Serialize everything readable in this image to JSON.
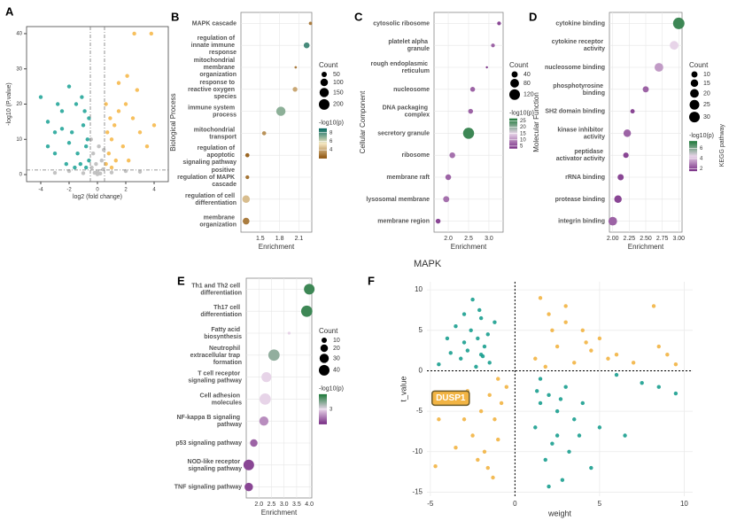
{
  "chart_data": [
    {
      "type": "scatter",
      "label": "A",
      "xlabel": "log2 (fold change)",
      "ylabel": "-log10 (P.value)",
      "xlim": [
        -5,
        5
      ],
      "ylim": [
        -2,
        42
      ],
      "xticks": [
        -4,
        -2,
        0,
        2,
        4
      ],
      "yticks": [
        0,
        10,
        20,
        30,
        40
      ],
      "vlines": [
        -0.5,
        0.5
      ],
      "hline": 1.3,
      "series": [
        {
          "color": "#bdbdbd",
          "x": [
            -0.4,
            -0.2,
            0,
            0.2,
            0.4,
            -0.1,
            0.3,
            -0.3,
            0.1,
            -3,
            -2,
            2,
            3,
            -1,
            1,
            0,
            -0.45,
            0.45
          ],
          "values": [
            2,
            0.5,
            1,
            0.3,
            1.5,
            3,
            4,
            6,
            8,
            0.5,
            1,
            1,
            0.8,
            0.4,
            0.6,
            0.1,
            10,
            7
          ]
        },
        {
          "color": "#26a69a",
          "x": [
            -4,
            -3.5,
            -3,
            -2.5,
            -2,
            -1.5,
            -1,
            -0.8,
            -0.6,
            -2,
            -3,
            -1.2,
            -0.7,
            -1.8,
            -2.8,
            -0.9,
            -1.4,
            -2.2,
            -3.5,
            -1.1,
            -0.6,
            -2.5,
            -1.6,
            -0.8
          ],
          "values": [
            22,
            15,
            12,
            18,
            25,
            20,
            14,
            8,
            4,
            9,
            6,
            3,
            10,
            12,
            20,
            18,
            6,
            3,
            8,
            22,
            16,
            13,
            2,
            2
          ]
        },
        {
          "color": "#f6b94c",
          "x": [
            0.6,
            0.8,
            1,
            1.2,
            1.5,
            2,
            2.5,
            3,
            0.7,
            1.8,
            2.2,
            1,
            3.5,
            2.8,
            1.5,
            0.6,
            1.3,
            2.6,
            3.8,
            2.1,
            4,
            0.9
          ],
          "values": [
            3,
            6,
            10,
            14,
            18,
            20,
            16,
            12,
            12,
            8,
            4,
            2,
            8,
            24,
            26,
            20,
            4,
            40,
            40,
            28,
            14,
            16
          ]
        }
      ]
    },
    {
      "type": "dot",
      "label": "B",
      "ylabel": "Biological Process",
      "xlabel": "Enrichment",
      "xlim": [
        1.2,
        2.3
      ],
      "xticks": [
        1.5,
        1.8,
        2.1
      ],
      "categories": [
        "MAPK cascade",
        "regulation of innate immune response",
        "mitochondrial membrane organization",
        "response to reactive oxygen species",
        "immune system process",
        "mitochondrial transport",
        "regulation of apoptotic signaling pathway",
        "positive regulation of MAPK cascade",
        "regulation of cell differentiation",
        "membrane organization"
      ],
      "values": [
        2.28,
        2.22,
        2.05,
        2.04,
        1.82,
        1.56,
        1.3,
        1.3,
        1.28,
        1.28
      ],
      "sizes": [
        20,
        60,
        10,
        40,
        150,
        30,
        30,
        25,
        100,
        80
      ],
      "pvalues": [
        3,
        8,
        3,
        4,
        7,
        3.5,
        2.5,
        2.8,
        4.5,
        3
      ],
      "size_title": "Count",
      "sizeticks": [
        50,
        100,
        150,
        200
      ],
      "color_title": "-log10(p)",
      "colors": [
        "#8c510a",
        "#f6e8c3",
        "#01665e"
      ],
      "clim": [
        2,
        9
      ],
      "cticks": [
        4,
        6,
        8
      ]
    },
    {
      "type": "dot",
      "label": "C",
      "ylabel": "Cellular Component",
      "xlabel": "Enrichment",
      "xlim": [
        1.65,
        3.35
      ],
      "xticks": [
        {
          "value": 2,
          "label": "2.0"
        },
        2.5,
        {
          "value": 3,
          "label": "3.0"
        }
      ],
      "categories": [
        "cytosolic ribosome",
        "platelet alpha granule",
        "rough endoplasmic reticulum",
        "nucleosome",
        "DNA packaging complex",
        "secretory granule",
        "ribosome",
        "membrane raft",
        "lysosomal membrane",
        "membrane region"
      ],
      "values": [
        3.25,
        3.1,
        2.95,
        2.6,
        2.55,
        2.5,
        2.1,
        2,
        1.95,
        1.75
      ],
      "sizes": [
        15,
        15,
        5,
        25,
        25,
        130,
        35,
        35,
        40,
        25
      ],
      "pvalues": [
        5,
        7,
        4,
        7,
        7,
        25,
        8,
        7,
        8,
        5
      ],
      "size_title": "Count",
      "sizeticks": [
        40,
        80,
        120
      ],
      "color_title": "-log10(p)",
      "colors": [
        "#762a83",
        "#e7d4e8",
        "#1b7837"
      ],
      "clim": [
        3,
        27
      ],
      "cticks": [
        5,
        10,
        15,
        20,
        25
      ]
    },
    {
      "type": "dot",
      "label": "D",
      "ylabel": "Molecular Function",
      "xlabel": "Enrichment",
      "xlim": [
        1.95,
        3.05
      ],
      "xticks": [
        {
          "value": 2,
          "label": "2.00"
        },
        2.25,
        {
          "value": 2.5,
          "label": "2.50"
        },
        2.75,
        {
          "value": 3,
          "label": "3.00"
        }
      ],
      "categories": [
        "cytokine binding",
        "cytokine receptor activity",
        "nucleosome binding",
        "phosphotyrosine binding",
        "SH2 domain binding",
        "kinase inhibitor activity",
        "peptidase activator activity",
        "rRNA binding",
        "protease binding",
        "integrin binding"
      ],
      "values": [
        3,
        2.93,
        2.7,
        2.5,
        2.3,
        2.22,
        2.2,
        2.12,
        2.08,
        2
      ],
      "sizes": [
        35,
        20,
        20,
        10,
        5,
        15,
        8,
        10,
        15,
        20
      ],
      "pvalues": [
        7,
        4.5,
        3.5,
        2.5,
        2,
        2.5,
        2,
        2,
        2,
        2.5
      ],
      "size_title": "Count",
      "sizeticks": [
        10,
        15,
        20,
        25,
        30
      ],
      "color_title": "-log10(p)",
      "colors": [
        "#762a83",
        "#e7d4e8",
        "#1b7837"
      ],
      "clim": [
        1.5,
        7.5
      ],
      "cticks": [
        2,
        4,
        6
      ],
      "side_label": "KEGG pathway"
    },
    {
      "type": "dot",
      "label": "E",
      "xlabel": "Enrichment",
      "xlim": [
        1.5,
        4.1
      ],
      "xticks": [
        {
          "value": 2,
          "label": "2.0"
        },
        2.5,
        {
          "value": 3,
          "label": "3.0"
        },
        3.5,
        {
          "value": 4,
          "label": "4.0"
        }
      ],
      "categories": [
        "Th1 and Th2 cell differentiation",
        "Th17 cell differentiation",
        "Fatty acid biosynthesis",
        "Neutrophil extracellular trap formation",
        "T cell receptor signaling pathway",
        "Cell adhesion molecules",
        "NF-kappa B signaling pathway",
        "p53 signaling pathway",
        "NOD-like receptor signaling pathway",
        "TNF signaling pathway"
      ],
      "values": [
        4,
        3.9,
        3.2,
        2.6,
        2.3,
        2.25,
        2.2,
        1.8,
        1.6,
        1.6
      ],
      "sizes": [
        40,
        45,
        3,
        45,
        35,
        45,
        30,
        20,
        40,
        25
      ],
      "pvalues": [
        4,
        4,
        3,
        3.5,
        3,
        3,
        2.5,
        2.2,
        2,
        2
      ],
      "size_title": "Count",
      "sizeticks": [
        10,
        20,
        30,
        40
      ],
      "color_title": "-log10(p)",
      "colors": [
        "#762a83",
        "#e7d4e8",
        "#1b7837"
      ],
      "clim": [
        1.8,
        4.2
      ],
      "cticks": [
        3
      ]
    },
    {
      "type": "scatter",
      "label": "F",
      "title": "MAPK",
      "xlabel": "weight",
      "ylabel": "t_value",
      "xlim": [
        -5.2,
        10.5
      ],
      "ylim": [
        -15.5,
        11
      ],
      "xticks": [
        -5,
        0,
        5,
        10
      ],
      "yticks": [
        -15,
        -10,
        -5,
        0,
        5,
        10
      ],
      "zero_lines": true,
      "grid": true,
      "series": [
        {
          "color": "#1a9e8f",
          "x": [
            -2.5,
            -3,
            -2,
            -4,
            -3.5,
            -2.2,
            -1.8,
            -2.8,
            -3.2,
            -1.5,
            -2,
            -4.5,
            -2.6,
            -1.2,
            -3.8,
            -2.3,
            -1.6,
            -3,
            -2.1,
            -1.9,
            1.5,
            2,
            2.5,
            1.2,
            3,
            2.2,
            1.8,
            2.8,
            3.5,
            4,
            1.5,
            2.5,
            3.2,
            5,
            6,
            7.5,
            8.5,
            9.5,
            2,
            4.5,
            1.3,
            3.8,
            2.7,
            6.5
          ],
          "values": [
            8.8,
            7,
            6.5,
            4,
            5.5,
            4,
            3,
            2.5,
            1.5,
            1,
            2,
            0.8,
            5,
            6,
            2.2,
            0.5,
            4.5,
            3.5,
            7.5,
            1.8,
            -1,
            -3,
            -5,
            -7,
            -2,
            -9,
            -11,
            -13.5,
            -6,
            -4,
            -4,
            -8,
            -10,
            -7,
            -0.5,
            -1.5,
            -2,
            -2.8,
            -14.3,
            -12,
            -2.5,
            -8,
            -3.5,
            -8
          ]
        },
        {
          "color": "#f2b443",
          "x": [
            1.5,
            2,
            3,
            4,
            2.5,
            5,
            6,
            1.2,
            3.5,
            4.5,
            2.2,
            8.2,
            8.5,
            9,
            9.5,
            7,
            1.8,
            5.5,
            3,
            4.2,
            -1,
            -1.5,
            -2,
            -1.2,
            -2.5,
            -1.8,
            -1.3,
            -3,
            -0.8,
            -2.2,
            -3.5,
            -4.7,
            -4.5,
            -1,
            -2.8,
            -0.5,
            -1.6,
            -3.2
          ],
          "values": [
            9,
            7,
            6,
            5,
            3,
            4,
            2,
            1.5,
            1,
            2.5,
            5,
            8,
            3,
            2,
            0.8,
            1,
            0.5,
            1.5,
            8,
            3.5,
            -1,
            -3,
            -5,
            -6,
            -8,
            -10,
            -13.2,
            -6,
            -4,
            -11,
            -9.5,
            -11.8,
            -6,
            -8.5,
            -2.5,
            -2,
            -12,
            -4
          ]
        }
      ],
      "annotations": [
        {
          "text": "DUSP1",
          "x": -2.7,
          "y": -3.6
        }
      ]
    }
  ]
}
